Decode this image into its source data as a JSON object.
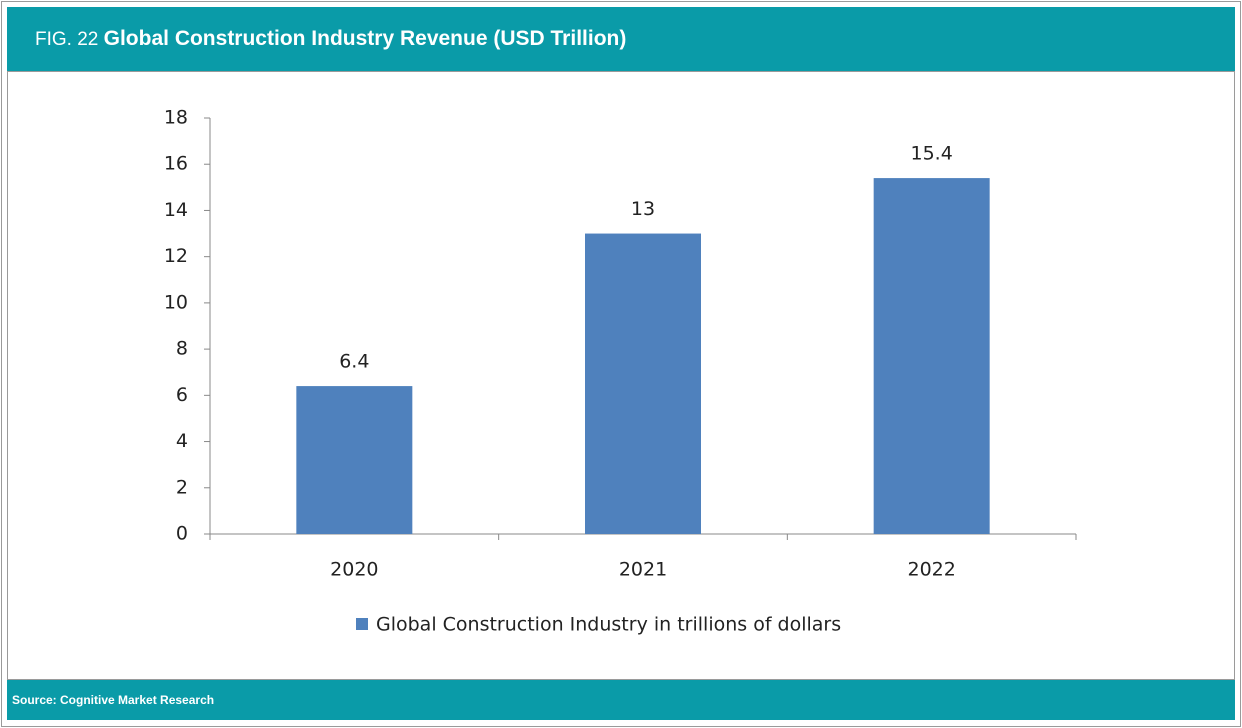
{
  "header": {
    "fig": "FIG. 22",
    "title": "Global Construction Industry Revenue (USD Trillion)"
  },
  "chart_data": {
    "type": "bar",
    "categories": [
      "2020",
      "2021",
      "2022"
    ],
    "series": [
      {
        "name": "Global Construction Industry in trillions of dollars",
        "color": "#4f81bd",
        "values": [
          6.4,
          13,
          15.4
        ]
      }
    ],
    "ylim": [
      0,
      18
    ],
    "yticks": [
      0,
      2,
      4,
      6,
      8,
      10,
      12,
      14,
      16,
      18
    ],
    "legend": "bottom"
  },
  "footer": {
    "source": "Source: Cognitive Market Research"
  }
}
